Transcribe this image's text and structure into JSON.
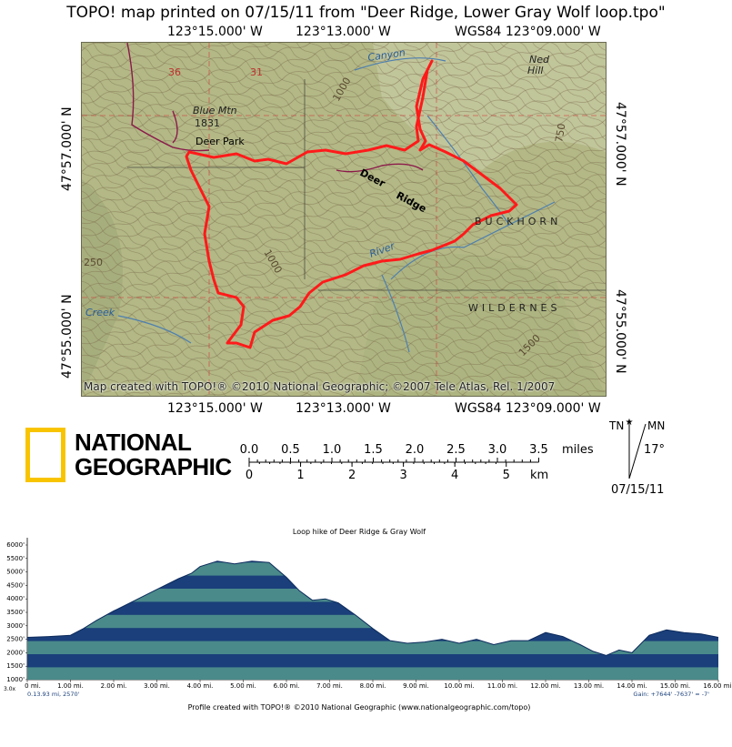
{
  "title": "TOPO! map printed on 07/15/11 from \"Deer Ridge, Lower Gray Wolf loop.tpo\"",
  "coords": {
    "top": [
      "123°15.000' W",
      "123°13.000' W",
      "WGS84 123°09.000' W"
    ],
    "bottom": [
      "123°15.000' W",
      "123°13.000' W",
      "WGS84 123°09.000' W"
    ],
    "left": [
      "47°57.000' N",
      "47°55.000' N"
    ],
    "right": [
      "47°57.000' N",
      "47°55.000' N"
    ]
  },
  "map": {
    "credit": "Map created with TOPO!® ©2010 National Geographic; ©2007 Tele Atlas, Rel. 1/2007",
    "labels": {
      "canyon": "Canyon",
      "ned_hill": "Ned",
      "ned_hill2": "Hill",
      "blue_mtn": "Blue Mtn",
      "elev_1831": "1831",
      "deer_park": "Deer Park",
      "deer": "Deer",
      "ridge": "Ridge",
      "buckhorn": "BUCKHORN",
      "wilderness": "WILDERNES",
      "river": "River",
      "creek": "Creek",
      "elev_1000a": "1000",
      "elev_1000b": "1000",
      "elev_1500": "1500",
      "elev_750": "750",
      "elev_250": "250",
      "sec_36": "36",
      "sec_31": "31"
    },
    "colors": {
      "route": "#ff1a1a",
      "terrain": "#b3b886",
      "contour": "#7a6a4a",
      "stream": "#4d7fb0",
      "road": "#8b1a4a",
      "grid": "#d04040"
    }
  },
  "logo": {
    "line1": "NATIONAL",
    "line2": "GEOGRAPHIC",
    "frame_color": "#f8c400"
  },
  "scale": {
    "miles_labels": [
      "0.0",
      "0.5",
      "1.0",
      "1.5",
      "2.0",
      "2.5",
      "3.0",
      "3.5"
    ],
    "miles_unit": "miles",
    "km_labels": [
      "0",
      "1",
      "2",
      "3",
      "4",
      "5"
    ],
    "km_unit": "km"
  },
  "north": {
    "tn": "TN",
    "mn": "MN",
    "declination": "17°",
    "date": "07/15/11"
  },
  "profile": {
    "title": "Loop hike of Deer Ridge & Gray Wolf",
    "footer": "Profile created with TOPO!® ©2010 National Geographic (www.nationalgeographic.com/topo)",
    "left_readout": "0.13.93 mi, 2570'",
    "right_readout": "Gain: +7644' -7637' = -7'",
    "corner_label": "3.0x",
    "y_ticks": [
      "6000'",
      "5500'",
      "5000'",
      "4500'",
      "4000'",
      "3500'",
      "3000'",
      "2500'",
      "2000'",
      "1500'",
      "1000'"
    ],
    "x_ticks": [
      "0 mi.",
      "1.00 mi.",
      "2.00 mi.",
      "3.00 mi.",
      "4.00 mi.",
      "5.00 mi.",
      "6.00 mi.",
      "7.00 mi.",
      "8.00 mi.",
      "9.00 mi.",
      "10.00 mi.",
      "11.00 mi.",
      "12.00 mi.",
      "13.00 mi.",
      "14.00 mi.",
      "15.00 mi.",
      "16.00 mi."
    ],
    "colors": {
      "dark": "#1a3f7a",
      "light": "#4a8a8a"
    }
  },
  "chart_data": {
    "type": "area",
    "title": "Loop hike of Deer Ridge & Gray Wolf",
    "xlabel": "",
    "ylabel": "",
    "xlim": [
      0,
      16
    ],
    "ylim": [
      1000,
      6000
    ],
    "grid": false,
    "x": [
      0,
      0.5,
      1.0,
      1.3,
      1.6,
      2.0,
      2.5,
      3.0,
      3.5,
      3.8,
      4.0,
      4.4,
      4.8,
      5.2,
      5.6,
      6.0,
      6.3,
      6.6,
      6.9,
      7.2,
      7.6,
      8.0,
      8.4,
      8.8,
      9.2,
      9.6,
      10.0,
      10.4,
      10.8,
      11.2,
      11.6,
      12.0,
      12.4,
      12.8,
      13.1,
      13.4,
      13.7,
      14.0,
      14.4,
      14.8,
      15.2,
      15.6,
      16.0
    ],
    "y": [
      2570,
      2600,
      2650,
      2900,
      3200,
      3550,
      3950,
      4350,
      4750,
      4950,
      5200,
      5400,
      5300,
      5400,
      5350,
      4800,
      4300,
      3950,
      4000,
      3850,
      3400,
      2900,
      2450,
      2350,
      2400,
      2500,
      2350,
      2500,
      2300,
      2450,
      2450,
      2750,
      2600,
      2300,
      2050,
      1900,
      2100,
      2000,
      2650,
      2850,
      2750,
      2700,
      2570
    ]
  }
}
